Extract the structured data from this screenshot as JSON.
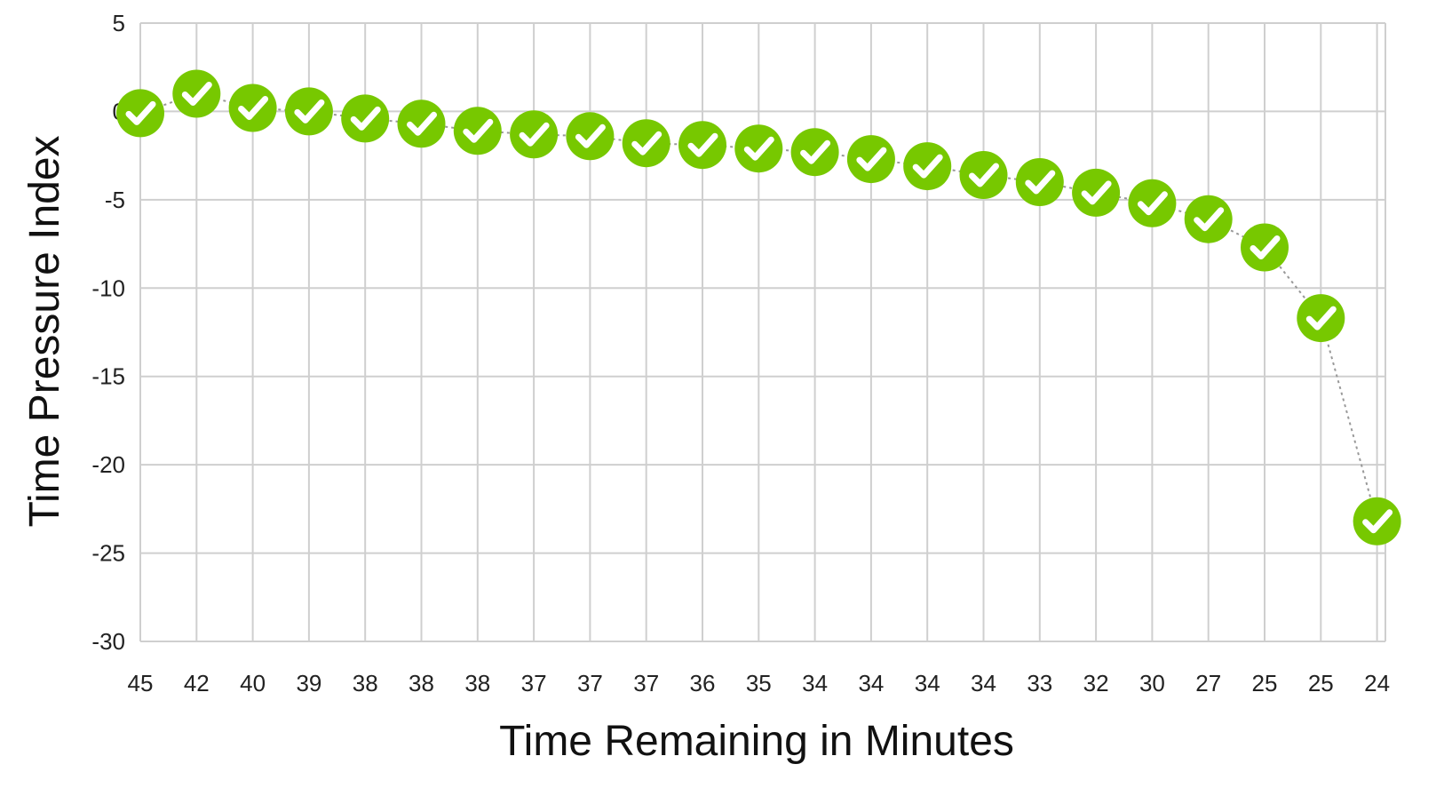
{
  "chart_data": {
    "type": "line",
    "title": "",
    "xlabel": "Time Remaining in Minutes",
    "ylabel": "Time Pressure Index",
    "x": [
      "45",
      "42",
      "40",
      "39",
      "38",
      "38",
      "38",
      "37",
      "37",
      "37",
      "36",
      "35",
      "34",
      "34",
      "34",
      "34",
      "33",
      "32",
      "30",
      "27",
      "25",
      "25",
      "24"
    ],
    "values": [
      -0.1,
      1.0,
      0.2,
      0.0,
      -0.4,
      -0.7,
      -1.1,
      -1.3,
      -1.4,
      -1.8,
      -1.9,
      -2.1,
      -2.3,
      -2.7,
      -3.1,
      -3.6,
      -4.0,
      -4.6,
      -5.2,
      -6.1,
      -7.7,
      -11.7,
      -23.2
    ],
    "ylim": [
      -30,
      5
    ],
    "yticks": [
      "5",
      "0",
      "-5",
      "-10",
      "-15",
      "-20",
      "-25",
      "-30"
    ],
    "grid": true,
    "marker": "check-circle",
    "connector": "dotted",
    "colors": {
      "marker": "#77c800",
      "check": "#ffffff",
      "grid": "#cfcfcf",
      "connector": "#999999"
    }
  }
}
